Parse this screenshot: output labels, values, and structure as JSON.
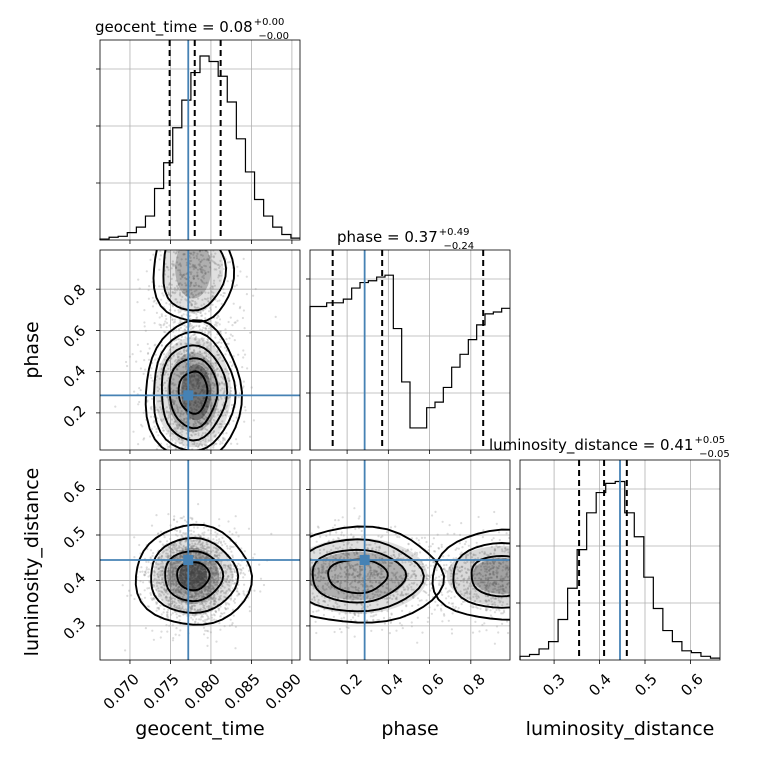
{
  "chart_data": {
    "type": "corner",
    "parameters": [
      "geocent_time",
      "phase",
      "luminosity_distance"
    ],
    "ranges": {
      "geocent_time": [
        0.0663,
        0.091
      ],
      "phase": [
        0.02,
        0.99
      ],
      "luminosity_distance": [
        0.225,
        0.665
      ]
    },
    "truths": {
      "geocent_time": 0.0772,
      "phase": 0.285,
      "luminosity_distance": 0.445
    },
    "quantiles": {
      "geocent_time": [
        0.0749,
        0.078,
        0.0812
      ],
      "phase": [
        0.13,
        0.37,
        0.86
      ],
      "luminosity_distance": [
        0.355,
        0.41,
        0.46
      ]
    },
    "titles": {
      "geocent_time": {
        "prefix": "geocent_time = 0.08",
        "plus": "+0.00",
        "minus": "−0.00"
      },
      "phase": {
        "prefix": "phase = 0.37",
        "plus": "+0.49",
        "minus": "−0.24"
      },
      "luminosity_distance": {
        "prefix": "luminosity_distance = 0.41",
        "plus": "+0.05",
        "minus": "−0.05"
      }
    },
    "ticks": {
      "geocent_time": [
        "0.070",
        "0.075",
        "0.080",
        "0.085",
        "0.090"
      ],
      "phase": [
        "0.2",
        "0.4",
        "0.6",
        "0.8"
      ],
      "luminosity_distance": [
        "0.3",
        "0.4",
        "0.5",
        "0.6"
      ]
    },
    "histograms": {
      "geocent_time": [
        0.005,
        0.015,
        0.02,
        0.04,
        0.07,
        0.13,
        0.28,
        0.42,
        0.61,
        0.76,
        0.91,
        1.0,
        0.97,
        0.89,
        0.75,
        0.55,
        0.37,
        0.22,
        0.13,
        0.07,
        0.03,
        0.01
      ],
      "phase": [
        0.78,
        0.78,
        0.8,
        0.8,
        0.82,
        0.88,
        0.91,
        0.92,
        0.94,
        0.95,
        0.66,
        0.37,
        0.12,
        0.12,
        0.23,
        0.26,
        0.34,
        0.45,
        0.52,
        0.6,
        0.68,
        0.74,
        0.75,
        0.77
      ],
      "luminosity_distance": [
        0.02,
        0.03,
        0.06,
        0.1,
        0.22,
        0.39,
        0.6,
        0.8,
        0.91,
        0.96,
        0.97,
        0.8,
        0.67,
        0.45,
        0.28,
        0.16,
        0.1,
        0.05,
        0.04,
        0.02,
        0.01
      ]
    }
  }
}
